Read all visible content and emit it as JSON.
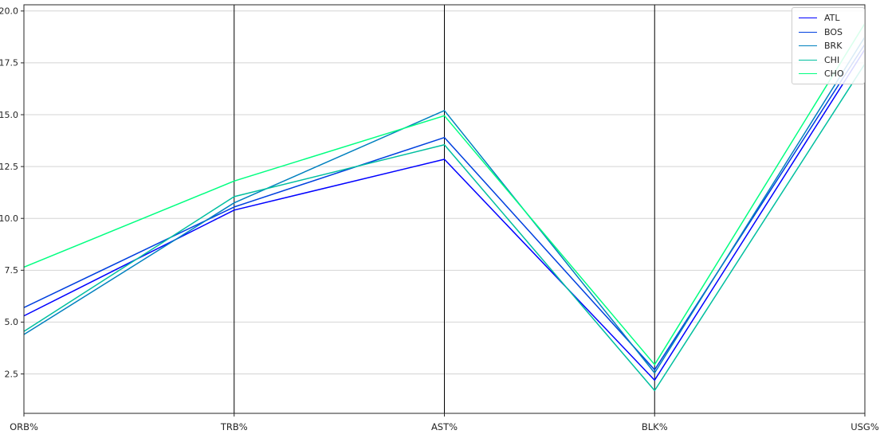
{
  "figure": {
    "background": "#ffffff",
    "frame_color": "#262626",
    "grid_color": "#d4d4d4",
    "axis_line_color": "#000000",
    "tick_color": "#262626"
  },
  "chart_data": {
    "type": "line",
    "variant": "parallel-coordinates",
    "title": "",
    "xlabel": "",
    "ylabel": "",
    "categories": [
      "ORB%",
      "TRB%",
      "AST%",
      "BLK%",
      "USG%"
    ],
    "series": [
      {
        "name": "ATL",
        "color": "#0000ff",
        "values": [
          5.3,
          10.4,
          12.85,
          2.2,
          18.15
        ]
      },
      {
        "name": "BOS",
        "color": "#0040df",
        "values": [
          5.7,
          10.55,
          13.9,
          2.7,
          18.4
        ]
      },
      {
        "name": "BRK",
        "color": "#0080bf",
        "values": [
          4.4,
          10.75,
          15.2,
          2.55,
          18.75
        ]
      },
      {
        "name": "CHI",
        "color": "#00bf9f",
        "values": [
          4.55,
          11.05,
          13.55,
          1.7,
          17.45
        ]
      },
      {
        "name": "CHO",
        "color": "#00ff80",
        "values": [
          7.65,
          11.8,
          14.95,
          2.95,
          19.4
        ]
      }
    ],
    "yticks": [
      2.5,
      5.0,
      7.5,
      10.0,
      12.5,
      15.0,
      17.5,
      20.0
    ],
    "ytick_labels": [
      "2.5",
      "5.0",
      "7.5",
      "10.0",
      "12.5",
      "15.0",
      "17.5",
      "20.0"
    ],
    "ylim": [
      0.6,
      20.3
    ],
    "grid": true,
    "legend_position": "upper right",
    "line_width": 1.5
  }
}
